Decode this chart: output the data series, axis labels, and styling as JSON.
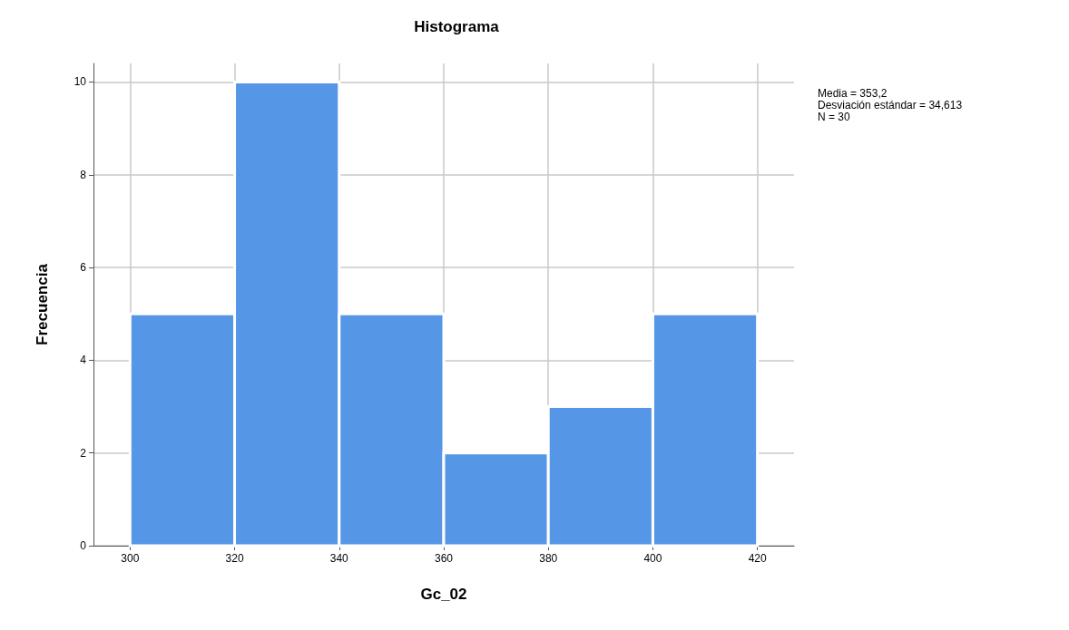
{
  "chart_data": {
    "type": "histogram",
    "title": "Histograma",
    "xlabel": "Gc_02",
    "ylabel": "Frecuencia",
    "bins": [
      300,
      320,
      340,
      360,
      380,
      400,
      420
    ],
    "values": [
      5,
      10,
      5,
      2,
      3,
      5
    ],
    "color": "#5596e6",
    "xlim": [
      293,
      427
    ],
    "xticks": [
      300,
      320,
      340,
      360,
      380,
      400,
      420
    ],
    "ylim": [
      0,
      10.4
    ],
    "yticks": [
      0,
      2,
      4,
      6,
      8,
      10
    ],
    "grid": true,
    "annotations": [
      "Media = 353,2",
      "Desviación estándar = 34,613",
      "N = 30"
    ]
  }
}
